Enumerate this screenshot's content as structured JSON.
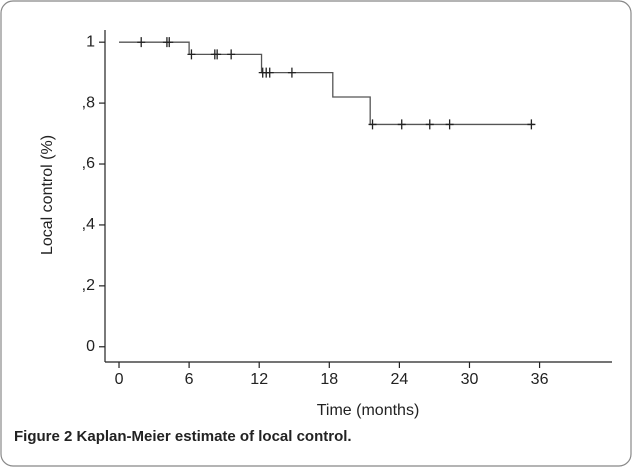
{
  "chart_data": {
    "type": "step",
    "caption": {
      "label": "Figure 2",
      "text": "Kaplan-Meier estimate of local control."
    },
    "xlabel": "Time (months)",
    "ylabel": "Local control (%)",
    "xlim": [
      -1.2,
      42.2
    ],
    "ylim": [
      -0.05,
      1.04
    ],
    "xticks": [
      0,
      6,
      12,
      18,
      24,
      30,
      36
    ],
    "yticks": [
      0,
      {
        "value": 0.2,
        "label": ",2"
      },
      {
        "value": 0.4,
        "label": ",4"
      },
      {
        "value": 0.6,
        "label": ",6"
      },
      {
        "value": 0.8,
        "label": ",8"
      },
      1
    ],
    "series": [
      {
        "drawstyle": "steps-post",
        "color": "#555555",
        "x": [
          0,
          6,
          12.2,
          18.3,
          21.5,
          35.5
        ],
        "values": [
          1,
          0.96,
          0.9,
          0.82,
          0.73,
          0.73
        ]
      },
      {
        "marker": "+",
        "color": "#222222",
        "x": [
          1.9,
          4.1,
          4.3,
          6.2,
          8.2,
          8.4,
          9.6,
          12.3,
          12.6,
          12.9,
          14.8,
          21.7,
          24.2,
          26.6,
          28.3,
          35.3
        ],
        "values": [
          1,
          1,
          1,
          0.96,
          0.96,
          0.96,
          0.96,
          0.9,
          0.9,
          0.9,
          0.9,
          0.73,
          0.73,
          0.73,
          0.73,
          0.73
        ]
      }
    ]
  }
}
